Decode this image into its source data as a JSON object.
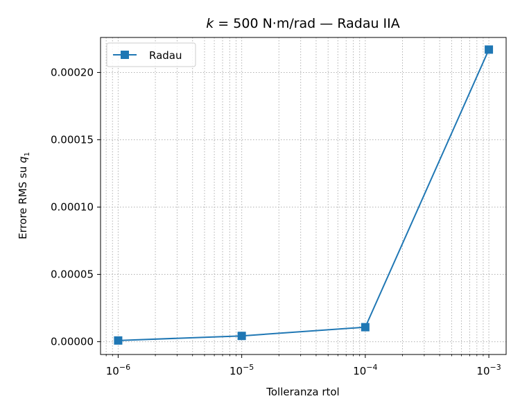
{
  "chart_data": {
    "type": "line",
    "title": {
      "italic_var": "k",
      "rest": " = 500 N·m/rad — Radau IIA"
    },
    "xlabel": "Tolleranza rtol",
    "ylabel": {
      "base": "Errore RMS su ",
      "var": "q",
      "sub": "1"
    },
    "xscale": "log",
    "xlim": [
      7.2e-07,
      0.00138
    ],
    "ylim": [
      -9.5e-06,
      0.000226
    ],
    "grid": true,
    "legend_position": "upper left",
    "x_ticks": [
      {
        "base": "10",
        "exp": "−6",
        "value": 1e-06
      },
      {
        "base": "10",
        "exp": "−5",
        "value": 1e-05
      },
      {
        "base": "10",
        "exp": "−4",
        "value": 0.0001
      },
      {
        "base": "10",
        "exp": "−3",
        "value": 0.001
      }
    ],
    "y_ticks": [
      {
        "label": "0.00000",
        "value": 0
      },
      {
        "label": "0.00005",
        "value": 5e-05
      },
      {
        "label": "0.00010",
        "value": 0.0001
      },
      {
        "label": "0.00015",
        "value": 0.00015
      },
      {
        "label": "0.00020",
        "value": 0.0002
      }
    ],
    "series": [
      {
        "name": "Radau",
        "color": "#1f77b4",
        "marker": "square",
        "x": [
          1e-06,
          1e-05,
          0.0001,
          0.001
        ],
        "y": [
          9e-07,
          4.3e-06,
          1.08e-05,
          0.000217
        ]
      }
    ]
  }
}
